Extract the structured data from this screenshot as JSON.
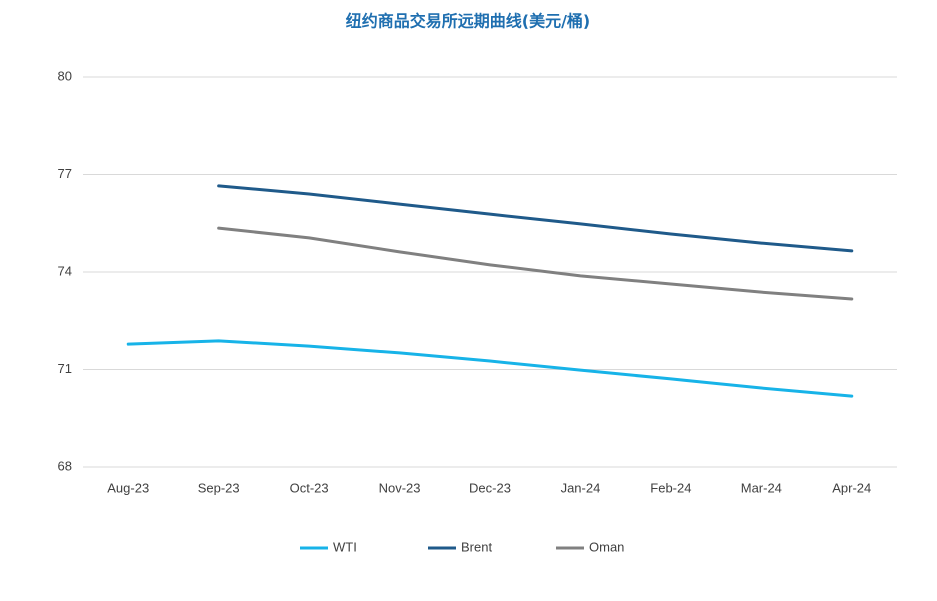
{
  "chart_data": {
    "type": "line",
    "title": "纽约商品交易所远期曲线(美元/桶)",
    "categories": [
      "Aug-23",
      "Sep-23",
      "Oct-23",
      "Nov-23",
      "Dec-23",
      "Jan-24",
      "Feb-24",
      "Mar-24",
      "Apr-24"
    ],
    "series": [
      {
        "name": "WTI",
        "color": "#17b3e8",
        "values": [
          71.78,
          71.88,
          71.72,
          71.51,
          71.26,
          70.98,
          70.71,
          70.43,
          70.18
        ]
      },
      {
        "name": "Brent",
        "color": "#1f5a8a",
        "values": [
          null,
          76.65,
          76.4,
          76.09,
          75.78,
          75.48,
          75.17,
          74.89,
          74.65
        ]
      },
      {
        "name": "Oman",
        "color": "#808080",
        "values": [
          null,
          75.35,
          75.05,
          74.62,
          74.22,
          73.88,
          73.63,
          73.38,
          73.17
        ]
      }
    ],
    "ylim": [
      68,
      80
    ],
    "yticks": [
      68,
      71,
      74,
      77,
      80
    ],
    "grid": true,
    "legend": "bottom"
  }
}
